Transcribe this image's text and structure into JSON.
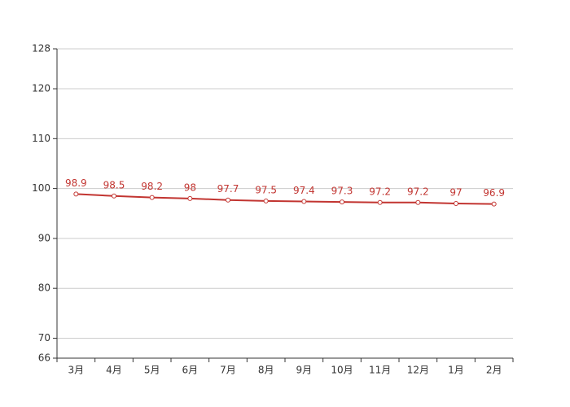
{
  "chart_data": {
    "type": "line",
    "categories": [
      "3月",
      "4月",
      "5月",
      "6月",
      "7月",
      "8月",
      "9月",
      "10月",
      "11月",
      "12月",
      "1月",
      "2月"
    ],
    "values": [
      98.9,
      98.5,
      98.2,
      98,
      97.7,
      97.5,
      97.4,
      97.3,
      97.2,
      97.2,
      97,
      96.9
    ],
    "color": "#c23531",
    "ylim": [
      66,
      128
    ],
    "yticks": [
      66,
      70,
      80,
      90,
      100,
      110,
      120,
      128
    ],
    "grid": true
  }
}
